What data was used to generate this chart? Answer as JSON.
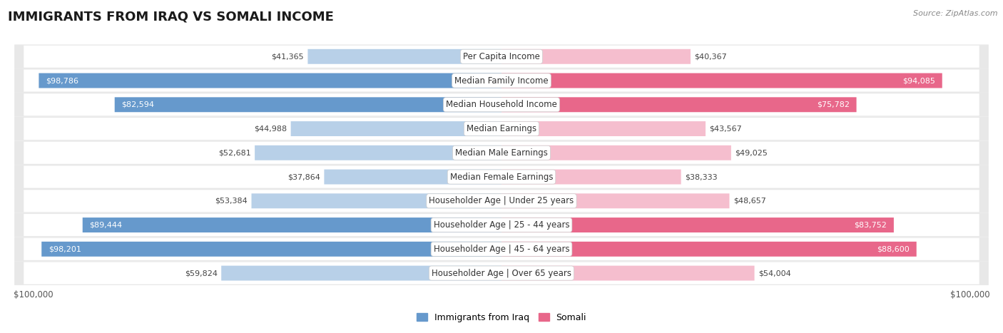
{
  "title": "IMMIGRANTS FROM IRAQ VS SOMALI INCOME",
  "source": "Source: ZipAtlas.com",
  "categories": [
    "Per Capita Income",
    "Median Family Income",
    "Median Household Income",
    "Median Earnings",
    "Median Male Earnings",
    "Median Female Earnings",
    "Householder Age | Under 25 years",
    "Householder Age | 25 - 44 years",
    "Householder Age | 45 - 64 years",
    "Householder Age | Over 65 years"
  ],
  "iraq_values": [
    41365,
    98786,
    82594,
    44988,
    52681,
    37864,
    53384,
    89444,
    98201,
    59824
  ],
  "somali_values": [
    40367,
    94085,
    75782,
    43567,
    49025,
    38333,
    48657,
    83752,
    88600,
    54004
  ],
  "iraq_color_light": "#b8d0e8",
  "iraq_color_dark": "#6699cc",
  "somali_color_light": "#f5bece",
  "somali_color_dark": "#e8678a",
  "max_value": 100000,
  "legend_iraq": "Immigrants from Iraq",
  "legend_somali": "Somali",
  "bar_height": 0.62,
  "row_bg_color": "#e8e8e8",
  "title_fontsize": 13,
  "label_fontsize": 8.5,
  "value_fontsize": 8,
  "inside_threshold": 75000
}
